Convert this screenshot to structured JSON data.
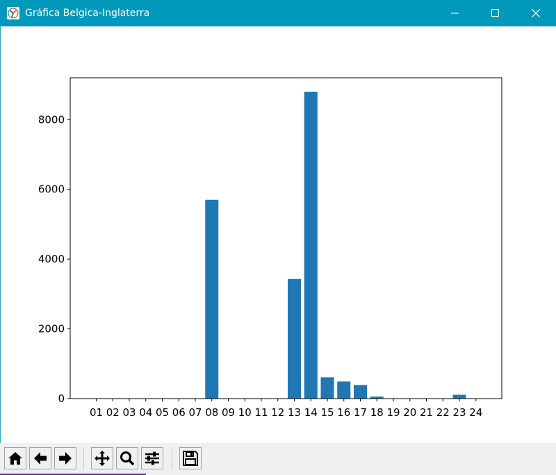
{
  "window": {
    "title": "Gráfica Belgica-Inglaterra",
    "controls": [
      "minimize-icon",
      "maximize-icon",
      "close-icon"
    ]
  },
  "colors": {
    "titlebar": "#0099bc",
    "bar": "#1f77b4",
    "toolbar": "#f0f0f0"
  },
  "chart_data": {
    "type": "bar",
    "title": "",
    "xlabel": "",
    "ylabel": "",
    "categories": [
      "01",
      "02",
      "03",
      "04",
      "05",
      "06",
      "07",
      "08",
      "09",
      "10",
      "11",
      "12",
      "13",
      "14",
      "15",
      "16",
      "17",
      "18",
      "19",
      "20",
      "21",
      "22",
      "23",
      "24"
    ],
    "values": [
      0,
      0,
      0,
      0,
      0,
      0,
      0,
      5700,
      0,
      0,
      0,
      0,
      3430,
      8800,
      610,
      490,
      390,
      60,
      0,
      0,
      0,
      0,
      110,
      0
    ],
    "ylim": [
      0,
      9200
    ],
    "yticks": [
      0,
      2000,
      4000,
      6000,
      8000
    ],
    "grid": false,
    "legend": "none"
  },
  "toolbar": {
    "buttons": [
      "home-icon",
      "back-icon",
      "forward-icon",
      "pan-icon",
      "zoom-icon",
      "configure-subplots-icon",
      "save-icon"
    ]
  }
}
